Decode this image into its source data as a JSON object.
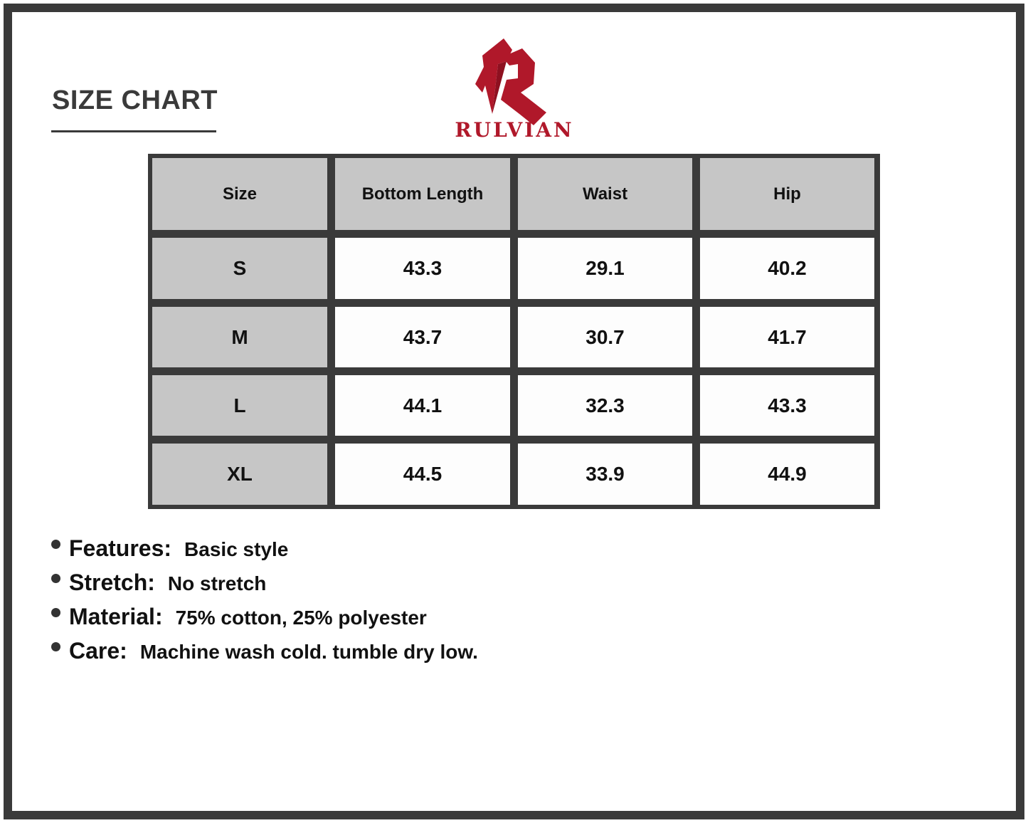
{
  "header": {
    "title": "SIZE CHART",
    "brand": "RULVIAN",
    "brand_color": "#b0182a",
    "logo_icon": "rulvian-r-logo"
  },
  "table": {
    "columns": [
      "Size",
      "Bottom Length",
      "Waist",
      "Hip"
    ],
    "rows": [
      [
        "S",
        "43.3",
        "29.1",
        "40.2"
      ],
      [
        "M",
        "43.7",
        "30.7",
        "41.7"
      ],
      [
        "L",
        "44.1",
        "32.3",
        "43.3"
      ],
      [
        "XL",
        "44.5",
        "33.9",
        "44.9"
      ]
    ]
  },
  "features": [
    {
      "key": "Features:",
      "value": "Basic style"
    },
    {
      "key": "Stretch:",
      "value": "No stretch"
    },
    {
      "key": "Material:",
      "value": "75% cotton, 25% polyester"
    },
    {
      "key": "Care:",
      "value": "Machine wash cold. tumble dry low."
    }
  ]
}
